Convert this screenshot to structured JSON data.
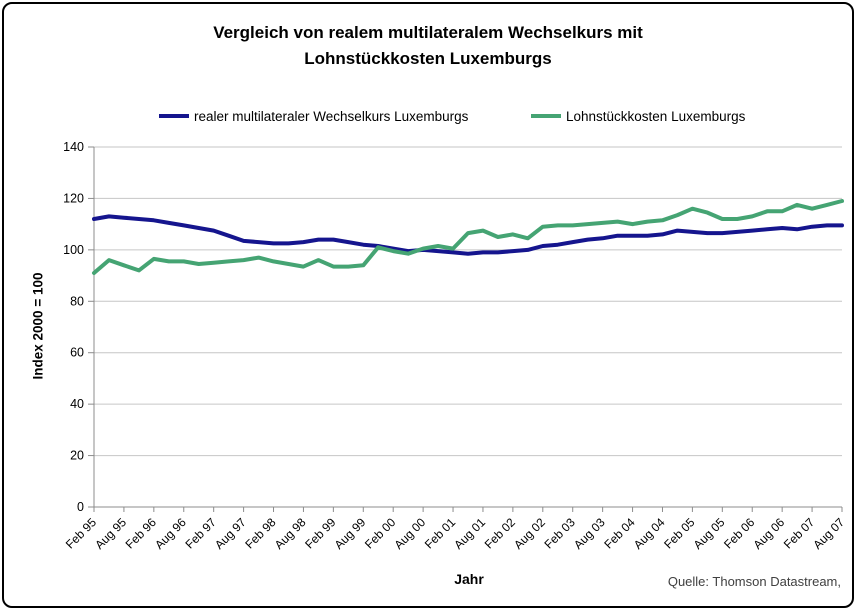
{
  "title": {
    "line1": "Vergleich von realem multilateralem Wechselkurs mit",
    "line2": "Lohnstückkosten Luxemburgs"
  },
  "axes": {
    "y_title": "Index 2000 = 100",
    "x_title": "Jahr"
  },
  "source": "Quelle: Thomson Datastream,",
  "legend": [
    {
      "label": "realer multilateraler Wechselkurs Luxemburgs",
      "color": "#15158E"
    },
    {
      "label": "Lohnstückkosten Luxemburgs",
      "color": "#45A473"
    }
  ],
  "colors": {
    "gridline": "#C6C6C6",
    "axis": "#8C8C8C",
    "tick_text": "#000000"
  },
  "chart_data": {
    "type": "line",
    "title": "Vergleich von realem multilateralem Wechselkurs mit Lohnstückkosten Luxemburgs",
    "xlabel": "Jahr",
    "ylabel": "Index 2000 = 100",
    "ylim": [
      0,
      140
    ],
    "yticks": [
      0,
      20,
      40,
      60,
      80,
      100,
      120,
      140
    ],
    "grid": "horizontal",
    "legend_position": "top",
    "x_tick_labels": [
      "Feb 95",
      "Aug 95",
      "Feb 96",
      "Aug 96",
      "Feb 97",
      "Aug 97",
      "Feb 98",
      "Aug 98",
      "Feb 99",
      "Aug 99",
      "Feb 00",
      "Aug 00",
      "Feb 01",
      "Aug 01",
      "Feb 02",
      "Aug 02",
      "Feb 03",
      "Aug 03",
      "Feb 04",
      "Aug 04",
      "Feb 05",
      "Aug 05",
      "Feb 06",
      "Aug 06",
      "Feb 07",
      "Aug 07"
    ],
    "x_frequency": "quarterly (Feb, May, Aug, Nov); labels every second quarter",
    "series": [
      {
        "name": "realer multilateraler Wechselkurs Luxemburgs",
        "color": "#15158E",
        "values": [
          112,
          113,
          112.5,
          112,
          111.5,
          110.5,
          109.5,
          108.5,
          107.5,
          105.5,
          103.5,
          103,
          102.5,
          102.5,
          103,
          104,
          104,
          103,
          102,
          101.5,
          100.5,
          99.5,
          100,
          99.5,
          99,
          98.5,
          99,
          99,
          99.5,
          100,
          101.5,
          102,
          103,
          104,
          104.5,
          105.5,
          105.5,
          105.5,
          106,
          107.5,
          107,
          106.5,
          106.5,
          107,
          107.5,
          108,
          108.5,
          108,
          109,
          109.5,
          109.5
        ]
      },
      {
        "name": "Lohnstückkosten Luxemburgs",
        "color": "#45A473",
        "values": [
          91,
          96,
          94,
          92,
          96.5,
          95.5,
          95.5,
          94.5,
          95,
          95.5,
          96,
          97,
          95.5,
          94.5,
          93.5,
          96,
          93.5,
          93.5,
          94,
          101,
          99.5,
          98.5,
          100.5,
          101.5,
          100.5,
          106.5,
          107.5,
          105,
          106,
          104.5,
          109,
          109.5,
          109.5,
          110,
          110.5,
          111,
          110,
          111,
          111.5,
          113.5,
          116,
          114.5,
          112,
          112,
          113,
          115,
          115,
          117.5,
          116,
          117.5,
          119
        ]
      }
    ]
  }
}
